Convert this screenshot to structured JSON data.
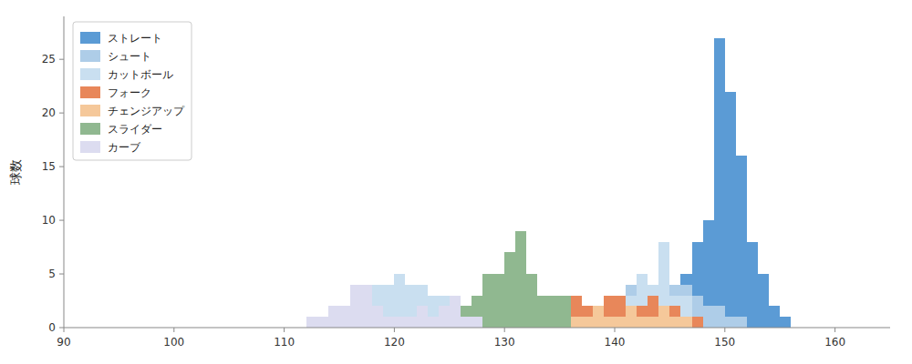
{
  "chart_data": {
    "type": "histogram",
    "ylabel": "球数",
    "xlim": [
      90,
      165
    ],
    "ylim": [
      0,
      29
    ],
    "xticks": [
      90,
      100,
      110,
      120,
      130,
      140,
      150,
      160
    ],
    "yticks": [
      0,
      5,
      10,
      15,
      20,
      25
    ],
    "grid": false,
    "legend": "upper left",
    "bins": [
      90,
      91,
      92,
      93,
      94,
      95,
      96,
      97,
      98,
      99,
      100,
      101,
      102,
      103,
      104,
      105,
      106,
      107,
      108,
      109,
      110,
      111,
      112,
      113,
      114,
      115,
      116,
      117,
      118,
      119,
      120,
      121,
      122,
      123,
      124,
      125,
      126,
      127,
      128,
      129,
      130,
      131,
      132,
      133,
      134,
      135,
      136,
      137,
      138,
      139,
      140,
      141,
      142,
      143,
      144,
      145,
      146,
      147,
      148,
      149,
      150,
      151,
      152,
      153,
      154,
      155,
      156,
      157,
      158,
      159,
      160,
      161,
      162,
      163,
      164,
      165,
      166
    ],
    "series": [
      {
        "name": "ストレート",
        "color": "#5b9bd5",
        "values": [
          0,
          0,
          0,
          0,
          0,
          0,
          0,
          0,
          0,
          0,
          0,
          0,
          0,
          0,
          0,
          0,
          0,
          0,
          0,
          0,
          0,
          0,
          0,
          0,
          0,
          0,
          0,
          0,
          0,
          0,
          0,
          0,
          0,
          0,
          0,
          0,
          0,
          0,
          0,
          0,
          0,
          0,
          0,
          0,
          0,
          0,
          0,
          0,
          0,
          0,
          0,
          0,
          0,
          1,
          1,
          2,
          5,
          8,
          10,
          27,
          22,
          16,
          8,
          5,
          2,
          1,
          0,
          0,
          0,
          0,
          0,
          0,
          0,
          0,
          0,
          0
        ]
      },
      {
        "name": "シュート",
        "color": "#aecde8",
        "values": [
          0,
          0,
          0,
          0,
          0,
          0,
          0,
          0,
          0,
          0,
          0,
          0,
          0,
          0,
          0,
          0,
          0,
          0,
          0,
          0,
          0,
          0,
          0,
          0,
          0,
          0,
          0,
          0,
          0,
          0,
          0,
          0,
          0,
          0,
          0,
          0,
          0,
          0,
          0,
          0,
          0,
          0,
          0,
          1,
          1,
          2,
          3,
          2,
          2,
          3,
          3,
          4,
          3,
          2,
          4,
          4,
          4,
          3,
          2,
          2,
          1,
          1,
          0,
          0,
          0,
          0,
          0,
          0,
          0,
          0,
          0,
          0,
          0,
          0,
          0,
          0
        ]
      },
      {
        "name": "カットボール",
        "color": "#c9dff0",
        "values": [
          0,
          0,
          0,
          0,
          0,
          0,
          0,
          0,
          0,
          0,
          0,
          0,
          0,
          0,
          0,
          0,
          0,
          0,
          0,
          0,
          0,
          0,
          0,
          1,
          1,
          1,
          2,
          3,
          4,
          4,
          5,
          4,
          4,
          3,
          3,
          1,
          1,
          1,
          0,
          0,
          0,
          0,
          0,
          0,
          0,
          0,
          1,
          1,
          2,
          1,
          2,
          3,
          5,
          4,
          8,
          3,
          3,
          0,
          0,
          0,
          0,
          0,
          0,
          0,
          0,
          0,
          0,
          0,
          0,
          0,
          0,
          0,
          0,
          0,
          0,
          0
        ]
      },
      {
        "name": "フォーク",
        "color": "#e8875a",
        "values": [
          0,
          0,
          0,
          0,
          0,
          0,
          0,
          0,
          0,
          0,
          0,
          0,
          0,
          0,
          0,
          0,
          0,
          0,
          0,
          0,
          0,
          0,
          0,
          0,
          0,
          0,
          0,
          0,
          0,
          0,
          0,
          0,
          0,
          0,
          0,
          0,
          0,
          0,
          0,
          0,
          0,
          0,
          0,
          0,
          1,
          1,
          3,
          2,
          2,
          3,
          3,
          2,
          2,
          3,
          2,
          2,
          1,
          1,
          0,
          0,
          0,
          0,
          0,
          0,
          0,
          0,
          0,
          0,
          0,
          0,
          0,
          0,
          0,
          0,
          0,
          0
        ]
      },
      {
        "name": "チェンジアップ",
        "color": "#f5c89a",
        "values": [
          0,
          0,
          0,
          0,
          0,
          0,
          0,
          0,
          0,
          0,
          0,
          0,
          0,
          0,
          0,
          0,
          0,
          0,
          0,
          0,
          0,
          0,
          0,
          0,
          0,
          0,
          0,
          0,
          0,
          0,
          0,
          0,
          0,
          0,
          0,
          0,
          0,
          0,
          0,
          0,
          1,
          0,
          0,
          1,
          1,
          1,
          1,
          1,
          2,
          1,
          1,
          2,
          1,
          1,
          2,
          1,
          1,
          0,
          0,
          0,
          0,
          0,
          0,
          0,
          0,
          0,
          0,
          0,
          0,
          0,
          0,
          0,
          0,
          0,
          0,
          0
        ]
      },
      {
        "name": "スライダー",
        "color": "#90b890",
        "values": [
          0,
          0,
          0,
          0,
          0,
          0,
          0,
          0,
          0,
          0,
          0,
          0,
          0,
          0,
          0,
          0,
          0,
          0,
          0,
          0,
          0,
          0,
          0,
          0,
          0,
          0,
          0,
          0,
          0,
          0,
          0,
          0,
          1,
          1,
          1,
          1,
          2,
          3,
          5,
          5,
          7,
          9,
          5,
          3,
          3,
          3,
          0,
          0,
          0,
          0,
          0,
          0,
          0,
          0,
          0,
          0,
          0,
          0,
          0,
          0,
          0,
          0,
          0,
          0,
          0,
          0,
          0,
          0,
          0,
          0,
          0,
          0,
          0,
          0,
          0,
          0
        ]
      },
      {
        "name": "カーブ",
        "color": "#dcdcf0",
        "values": [
          0,
          0,
          0,
          0,
          0,
          0,
          0,
          0,
          0,
          0,
          0,
          0,
          0,
          0,
          0,
          0,
          0,
          0,
          0,
          0,
          0,
          0,
          1,
          1,
          2,
          2,
          4,
          4,
          2,
          1,
          1,
          1,
          2,
          1,
          2,
          3,
          1,
          1,
          0,
          0,
          0,
          0,
          0,
          0,
          0,
          0,
          0,
          0,
          0,
          0,
          0,
          0,
          0,
          0,
          0,
          0,
          0,
          0,
          0,
          0,
          0,
          0,
          0,
          0,
          0,
          0,
          0,
          0,
          0,
          0,
          0,
          0,
          0,
          0,
          0,
          0
        ]
      }
    ]
  }
}
